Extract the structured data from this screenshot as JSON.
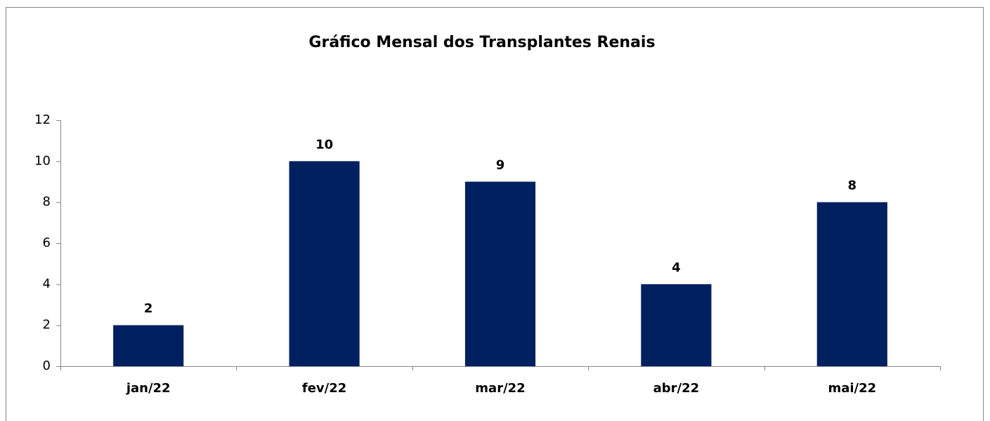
{
  "chart_data": {
    "type": "bar",
    "title": "Gráfico Mensal  dos Transplantes Renais",
    "categories": [
      "jan/22",
      "fev/22",
      "mar/22",
      "abr/22",
      "mai/22"
    ],
    "values": [
      2,
      10,
      9,
      4,
      8
    ],
    "color": "#002060",
    "ylim": [
      0,
      12
    ],
    "yticks": [
      0,
      2,
      4,
      6,
      8,
      10,
      12
    ],
    "grid": false
  }
}
